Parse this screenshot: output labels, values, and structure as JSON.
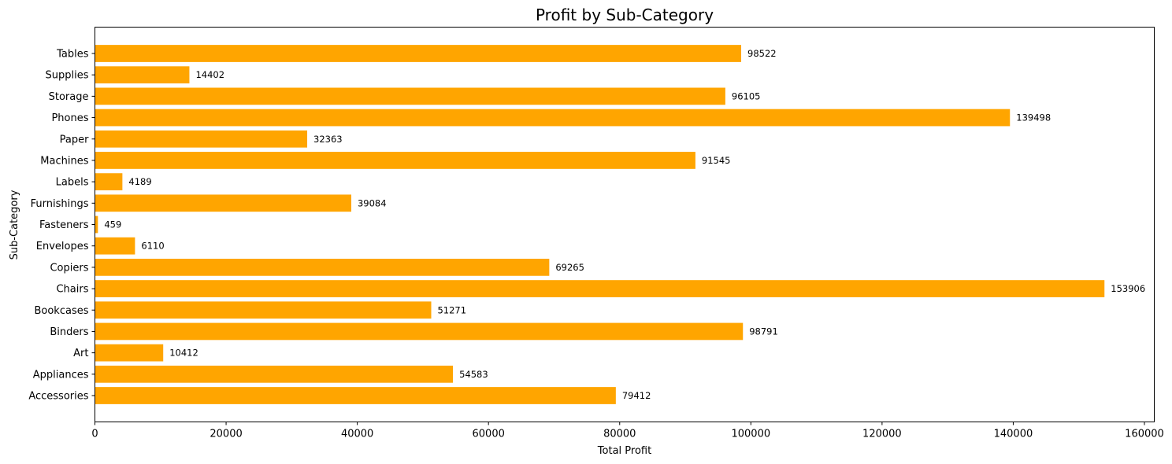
{
  "chart_data": {
    "type": "bar",
    "orientation": "horizontal",
    "title": "Profit by Sub-Category",
    "xlabel": "Total Profit",
    "ylabel": "Sub-Category",
    "bar_color": "#FFA500",
    "grid": false,
    "xlim": [
      0,
      161500
    ],
    "xticks": [
      0,
      20000,
      40000,
      60000,
      80000,
      100000,
      120000,
      140000,
      160000
    ],
    "categories": [
      "Accessories",
      "Appliances",
      "Art",
      "Binders",
      "Bookcases",
      "Chairs",
      "Copiers",
      "Envelopes",
      "Fasteners",
      "Furnishings",
      "Labels",
      "Machines",
      "Paper",
      "Phones",
      "Storage",
      "Supplies",
      "Tables"
    ],
    "values": [
      79412,
      54583,
      10412,
      98791,
      51271,
      153906,
      69265,
      6110,
      459,
      39084,
      4189,
      91545,
      32363,
      139498,
      96105,
      14402,
      98522
    ]
  }
}
